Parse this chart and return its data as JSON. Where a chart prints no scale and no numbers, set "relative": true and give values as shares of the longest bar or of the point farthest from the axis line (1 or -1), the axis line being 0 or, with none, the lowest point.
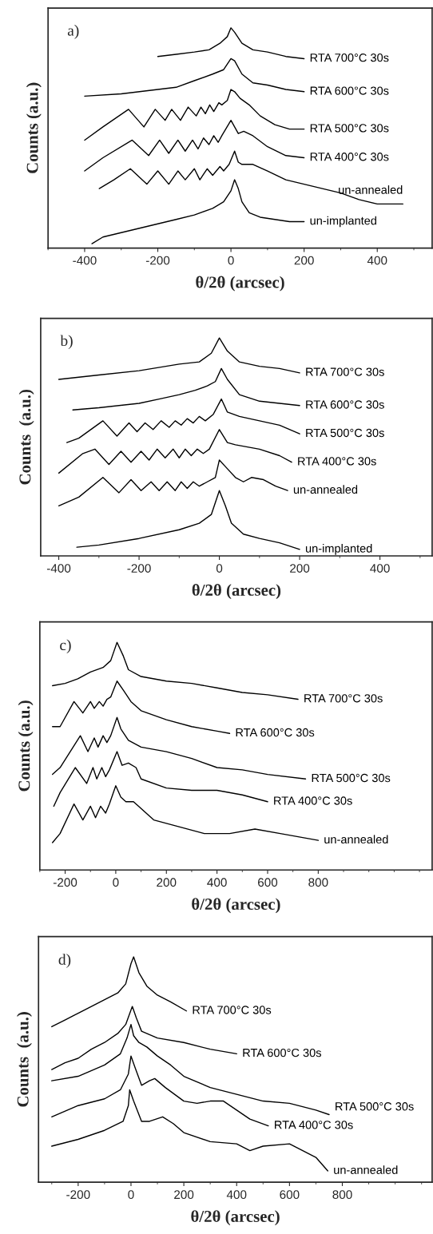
{
  "chart_data": [
    {
      "type": "line",
      "title": "a)",
      "xlabel": "θ/2θ (arcsec)",
      "ylabel": "Counts (a.u.)",
      "relative": true,
      "tick_labels": "x",
      "xlim": [
        -500,
        550
      ],
      "xticks": [
        -400,
        -200,
        0,
        200,
        400
      ],
      "series": [
        {
          "name": "RTA 700°C 30s",
          "color": "#000000",
          "x": [
            -200,
            -150,
            -100,
            -60,
            -30,
            -10,
            0,
            10,
            30,
            60,
            100,
            150,
            200
          ],
          "values": [
            0.87,
            0.88,
            0.89,
            0.9,
            0.93,
            0.96,
            1.0,
            0.98,
            0.93,
            0.9,
            0.89,
            0.87,
            0.86
          ]
        },
        {
          "name": "RTA 600°C 30s",
          "color": "#000000",
          "x": [
            -400,
            -300,
            -200,
            -150,
            -100,
            -50,
            -20,
            0,
            10,
            30,
            60,
            100,
            150,
            200
          ],
          "values": [
            0.69,
            0.7,
            0.72,
            0.73,
            0.76,
            0.79,
            0.81,
            0.86,
            0.85,
            0.79,
            0.75,
            0.74,
            0.72,
            0.71
          ]
        },
        {
          "name": "RTA 500°C 30s",
          "color": "#000000",
          "x": [
            -400,
            -350,
            -280,
            -238,
            -207,
            -180,
            -162,
            -138,
            -117,
            -95,
            -82,
            -70,
            -58,
            -47,
            -33,
            -25,
            -10,
            0,
            10,
            25,
            50,
            80,
            120,
            160,
            200
          ],
          "values": [
            0.49,
            0.55,
            0.63,
            0.55,
            0.63,
            0.58,
            0.63,
            0.58,
            0.64,
            0.6,
            0.64,
            0.61,
            0.65,
            0.62,
            0.66,
            0.65,
            0.67,
            0.72,
            0.71,
            0.68,
            0.65,
            0.6,
            0.56,
            0.54,
            0.54
          ]
        },
        {
          "name": "RTA 400°C 30s",
          "color": "#000000",
          "x": [
            -400,
            -350,
            -270,
            -225,
            -195,
            -170,
            -145,
            -125,
            -105,
            -90,
            -75,
            -60,
            -47,
            -35,
            -25,
            0,
            20,
            35,
            60,
            100,
            150,
            200
          ],
          "values": [
            0.35,
            0.41,
            0.49,
            0.42,
            0.49,
            0.43,
            0.49,
            0.44,
            0.49,
            0.45,
            0.5,
            0.47,
            0.51,
            0.48,
            0.51,
            0.58,
            0.52,
            0.53,
            0.51,
            0.46,
            0.42,
            0.41
          ]
        },
        {
          "name": "un-annealed",
          "color": "#000000",
          "x": [
            -360,
            -320,
            -275,
            -230,
            -200,
            -170,
            -145,
            -125,
            -100,
            -85,
            -65,
            -50,
            -30,
            -20,
            -5,
            10,
            20,
            30,
            45,
            60,
            100,
            150,
            200,
            250,
            300,
            350,
            400,
            470
          ],
          "values": [
            0.27,
            0.31,
            0.36,
            0.29,
            0.35,
            0.29,
            0.35,
            0.31,
            0.36,
            0.31,
            0.36,
            0.33,
            0.37,
            0.35,
            0.38,
            0.44,
            0.39,
            0.38,
            0.38,
            0.38,
            0.35,
            0.31,
            0.29,
            0.27,
            0.25,
            0.22,
            0.2,
            0.2
          ]
        },
        {
          "name": "un-implanted",
          "color": "#000000",
          "x": [
            -380,
            -350,
            -300,
            -250,
            -200,
            -150,
            -100,
            -50,
            -20,
            0,
            10,
            20,
            30,
            50,
            80,
            120,
            160,
            200
          ],
          "values": [
            0.02,
            0.05,
            0.07,
            0.09,
            0.11,
            0.13,
            0.15,
            0.18,
            0.21,
            0.26,
            0.31,
            0.27,
            0.21,
            0.16,
            0.14,
            0.13,
            0.12,
            0.12
          ]
        }
      ]
    },
    {
      "type": "line",
      "title": "b)",
      "xlabel": "θ/2θ (arcsec)",
      "ylabel": "Counts  (a.u.)",
      "relative": true,
      "tick_labels": "x",
      "xlim": [
        -445,
        530
      ],
      "xticks": [
        -400,
        -200,
        0,
        200,
        400
      ],
      "series": [
        {
          "name": "RTA 700°C 30s",
          "color": "#000000",
          "x": [
            -400,
            -300,
            -200,
            -100,
            -50,
            -20,
            0,
            20,
            50,
            100,
            150,
            200
          ],
          "values": [
            0.81,
            0.83,
            0.85,
            0.88,
            0.89,
            0.93,
            1.0,
            0.94,
            0.89,
            0.87,
            0.86,
            0.84
          ]
        },
        {
          "name": "RTA 600°C 30s",
          "color": "#000000",
          "x": [
            -365,
            -300,
            -200,
            -150,
            -100,
            -60,
            -30,
            -10,
            5,
            20,
            50,
            100,
            150,
            200
          ],
          "values": [
            0.67,
            0.68,
            0.7,
            0.72,
            0.74,
            0.76,
            0.78,
            0.8,
            0.86,
            0.81,
            0.74,
            0.71,
            0.7,
            0.69
          ]
        },
        {
          "name": "RTA 500°C 30s",
          "color": "#000000",
          "x": [
            -380,
            -350,
            -290,
            -255,
            -225,
            -205,
            -185,
            -165,
            -145,
            -125,
            -110,
            -95,
            -80,
            -65,
            -50,
            -35,
            -15,
            5,
            20,
            50,
            100,
            150,
            200
          ],
          "values": [
            0.52,
            0.54,
            0.62,
            0.55,
            0.61,
            0.57,
            0.61,
            0.58,
            0.62,
            0.59,
            0.62,
            0.6,
            0.63,
            0.61,
            0.64,
            0.62,
            0.65,
            0.72,
            0.66,
            0.64,
            0.62,
            0.6,
            0.56
          ]
        },
        {
          "name": "RTA 400°C 30s",
          "color": "#000000",
          "x": [
            -400,
            -340,
            -310,
            -275,
            -245,
            -220,
            -195,
            -175,
            -155,
            -135,
            -115,
            -100,
            -85,
            -70,
            -55,
            -40,
            -25,
            0,
            20,
            40,
            70,
            100,
            150,
            180
          ],
          "values": [
            0.38,
            0.47,
            0.49,
            0.42,
            0.48,
            0.43,
            0.48,
            0.44,
            0.49,
            0.45,
            0.49,
            0.45,
            0.49,
            0.46,
            0.49,
            0.47,
            0.49,
            0.58,
            0.52,
            0.51,
            0.5,
            0.49,
            0.46,
            0.43
          ]
        },
        {
          "name": "un-annealed",
          "color": "#000000",
          "x": [
            -400,
            -350,
            -290,
            -250,
            -220,
            -195,
            -170,
            -150,
            -130,
            -110,
            -95,
            -80,
            -65,
            -50,
            -30,
            -10,
            0,
            20,
            40,
            60,
            80,
            110,
            140,
            170
          ],
          "values": [
            0.23,
            0.27,
            0.36,
            0.29,
            0.35,
            0.3,
            0.34,
            0.3,
            0.34,
            0.3,
            0.34,
            0.31,
            0.34,
            0.32,
            0.34,
            0.36,
            0.44,
            0.4,
            0.36,
            0.34,
            0.36,
            0.35,
            0.32,
            0.3
          ]
        },
        {
          "name": "un-implanted",
          "color": "#000000",
          "x": [
            -355,
            -300,
            -200,
            -100,
            -50,
            -20,
            0,
            15,
            30,
            60,
            100,
            150,
            200
          ],
          "values": [
            0.04,
            0.05,
            0.08,
            0.12,
            0.15,
            0.19,
            0.3,
            0.23,
            0.15,
            0.1,
            0.08,
            0.06,
            0.03
          ]
        }
      ]
    },
    {
      "type": "line",
      "title": "c)",
      "xlabel": "θ/2θ (arcsec)",
      "ylabel": "Counts (a.u.)",
      "relative": true,
      "tick_labels": "x",
      "xlim": [
        -300,
        1250
      ],
      "xticks": [
        -200,
        0,
        200,
        400,
        600,
        800
      ],
      "series": [
        {
          "name": "RTA 700°C 30s",
          "color": "#000000",
          "x": [
            -250,
            -200,
            -150,
            -100,
            -50,
            -20,
            5,
            30,
            50,
            100,
            200,
            300,
            400,
            500,
            600,
            720
          ],
          "values": [
            0.81,
            0.82,
            0.84,
            0.87,
            0.89,
            0.92,
            1.0,
            0.94,
            0.88,
            0.85,
            0.83,
            0.82,
            0.8,
            0.78,
            0.77,
            0.75
          ]
        },
        {
          "name": "RTA 600°C 30s",
          "color": "#000000",
          "x": [
            -250,
            -220,
            -165,
            -130,
            -100,
            -85,
            -65,
            -50,
            -35,
            -20,
            5,
            30,
            60,
            100,
            200,
            300,
            400,
            450
          ],
          "values": [
            0.63,
            0.63,
            0.74,
            0.69,
            0.74,
            0.71,
            0.74,
            0.72,
            0.75,
            0.76,
            0.83,
            0.79,
            0.74,
            0.7,
            0.66,
            0.63,
            0.61,
            0.6
          ]
        },
        {
          "name": "RTA 500°C 30s",
          "color": "#000000",
          "x": [
            -250,
            -220,
            -140,
            -110,
            -85,
            -70,
            -50,
            -35,
            -20,
            5,
            20,
            50,
            100,
            200,
            300,
            400,
            500,
            600,
            750
          ],
          "values": [
            0.42,
            0.45,
            0.59,
            0.52,
            0.58,
            0.54,
            0.59,
            0.56,
            0.59,
            0.67,
            0.62,
            0.57,
            0.54,
            0.52,
            0.49,
            0.45,
            0.44,
            0.42,
            0.4
          ]
        },
        {
          "name": "RTA 400°C 30s",
          "color": "#000000",
          "x": [
            -245,
            -220,
            -160,
            -115,
            -90,
            -75,
            -55,
            -40,
            -25,
            5,
            25,
            50,
            80,
            100,
            200,
            300,
            400,
            500,
            600
          ],
          "values": [
            0.28,
            0.34,
            0.45,
            0.38,
            0.45,
            0.4,
            0.45,
            0.41,
            0.44,
            0.52,
            0.46,
            0.47,
            0.45,
            0.4,
            0.36,
            0.35,
            0.35,
            0.33,
            0.3
          ]
        },
        {
          "name": "un-annealed",
          "color": "#000000",
          "x": [
            -250,
            -220,
            -165,
            -130,
            -100,
            -80,
            -60,
            -40,
            -25,
            0,
            20,
            40,
            70,
            100,
            150,
            250,
            350,
            450,
            550,
            650,
            800
          ],
          "values": [
            0.12,
            0.16,
            0.29,
            0.22,
            0.28,
            0.23,
            0.28,
            0.25,
            0.29,
            0.37,
            0.32,
            0.3,
            0.3,
            0.27,
            0.22,
            0.19,
            0.16,
            0.16,
            0.18,
            0.16,
            0.13
          ]
        }
      ]
    },
    {
      "type": "line",
      "title": "d)",
      "xlabel": "θ/2θ (arcsec)",
      "ylabel": "Counts  (a.u.)",
      "relative": true,
      "tick_labels": "x",
      "xlim": [
        -350,
        1140
      ],
      "xticks": [
        -200,
        0,
        200,
        400,
        600,
        800
      ],
      "series": [
        {
          "name": "RTA 700°C 30s",
          "color": "#000000",
          "x": [
            -300,
            -250,
            -200,
            -150,
            -100,
            -50,
            -20,
            0,
            10,
            30,
            60,
            100,
            150,
            210
          ],
          "values": [
            0.69,
            0.72,
            0.75,
            0.78,
            0.81,
            0.84,
            0.88,
            0.97,
            1.0,
            0.93,
            0.87,
            0.83,
            0.8,
            0.76
          ]
        },
        {
          "name": "RTA 600°C 30s",
          "color": "#000000",
          "x": [
            -300,
            -250,
            -200,
            -150,
            -100,
            -50,
            -20,
            5,
            20,
            40,
            100,
            200,
            300,
            400
          ],
          "values": [
            0.5,
            0.53,
            0.55,
            0.59,
            0.62,
            0.66,
            0.7,
            0.78,
            0.73,
            0.67,
            0.64,
            0.62,
            0.59,
            0.57
          ]
        },
        {
          "name": "RTA 500°C 30s",
          "color": "#000000",
          "x": [
            -300,
            -200,
            -100,
            -40,
            -15,
            0,
            10,
            30,
            60,
            100,
            150,
            200,
            300,
            400,
            500,
            600,
            700,
            750
          ],
          "values": [
            0.45,
            0.47,
            0.52,
            0.57,
            0.64,
            0.7,
            0.65,
            0.62,
            0.6,
            0.56,
            0.52,
            0.47,
            0.42,
            0.39,
            0.36,
            0.35,
            0.32,
            0.3
          ]
        },
        {
          "name": "RTA 400°C 30s",
          "color": "#000000",
          "x": [
            -300,
            -200,
            -100,
            -40,
            -10,
            0,
            15,
            40,
            70,
            90,
            130,
            200,
            250,
            300,
            350,
            400,
            450,
            520
          ],
          "values": [
            0.29,
            0.34,
            0.37,
            0.41,
            0.48,
            0.56,
            0.51,
            0.43,
            0.45,
            0.46,
            0.42,
            0.36,
            0.35,
            0.36,
            0.36,
            0.32,
            0.28,
            0.25
          ]
        },
        {
          "name": "un-annealed",
          "color": "#000000",
          "x": [
            -300,
            -200,
            -100,
            -30,
            -10,
            -5,
            10,
            40,
            70,
            120,
            160,
            200,
            300,
            400,
            450,
            500,
            600,
            700,
            745
          ],
          "values": [
            0.16,
            0.19,
            0.23,
            0.27,
            0.34,
            0.41,
            0.36,
            0.27,
            0.27,
            0.29,
            0.26,
            0.22,
            0.18,
            0.17,
            0.14,
            0.16,
            0.17,
            0.11,
            0.05
          ]
        }
      ]
    }
  ]
}
